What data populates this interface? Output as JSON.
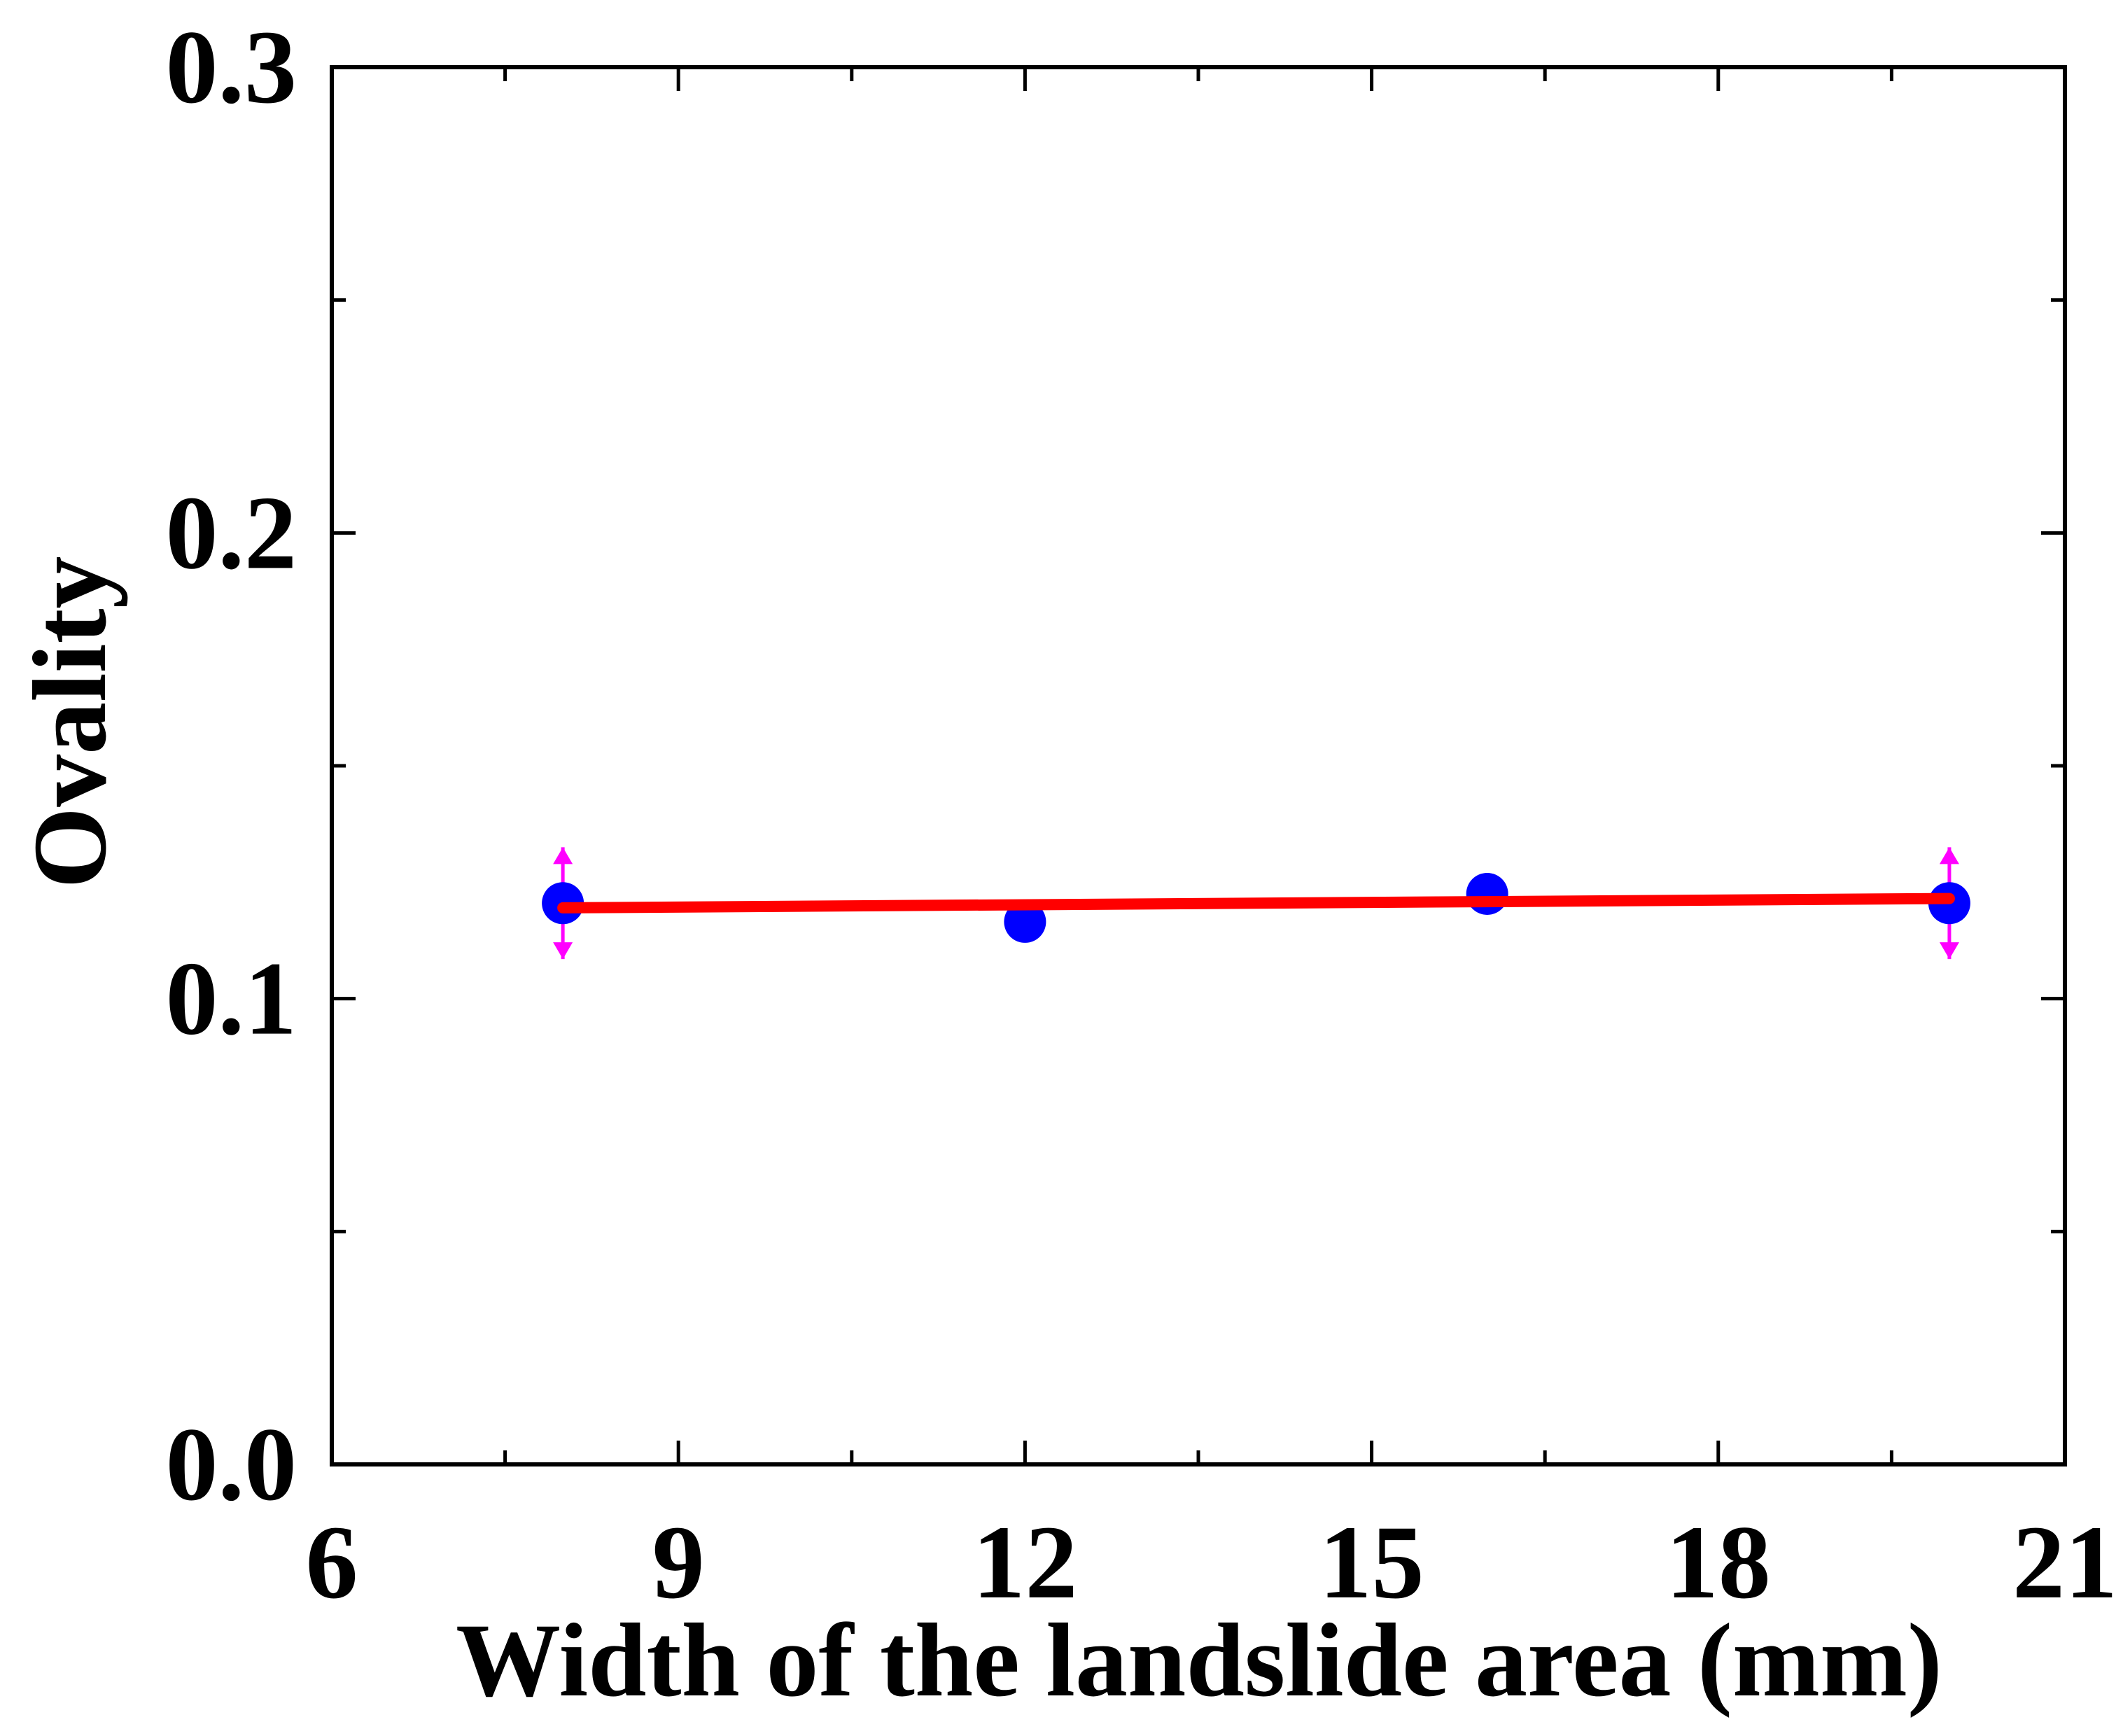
{
  "chart_data": {
    "type": "scatter",
    "title": "",
    "xlabel": "Width of the landslide area (mm)",
    "ylabel": "Ovality",
    "xlim": [
      6,
      21
    ],
    "ylim": [
      0.0,
      0.3
    ],
    "x_ticks": [
      6,
      9,
      12,
      15,
      18,
      21
    ],
    "x_tick_labels": [
      "6",
      "9",
      "12",
      "15",
      "18",
      "21"
    ],
    "y_ticks": [
      0.0,
      0.1,
      0.2,
      0.3
    ],
    "y_tick_labels": [
      "0.0",
      "0.1",
      "0.2",
      "0.3"
    ],
    "grid": false,
    "legend": "none",
    "series": [
      {
        "kind": "markers",
        "color": "#0000ff",
        "points": [
          {
            "x": 8,
            "y": 0.1205,
            "err": 0.012
          },
          {
            "x": 12,
            "y": 0.1165,
            "err": 0.0
          },
          {
            "x": 16,
            "y": 0.1225,
            "err": 0.0
          },
          {
            "x": 20,
            "y": 0.1205,
            "err": 0.012
          }
        ],
        "error_bar_color": "#ff00ff"
      },
      {
        "kind": "fit-line",
        "color": "#ff0000",
        "points": [
          {
            "x": 8,
            "y": 0.1195
          },
          {
            "x": 20,
            "y": 0.1215
          }
        ]
      }
    ]
  }
}
